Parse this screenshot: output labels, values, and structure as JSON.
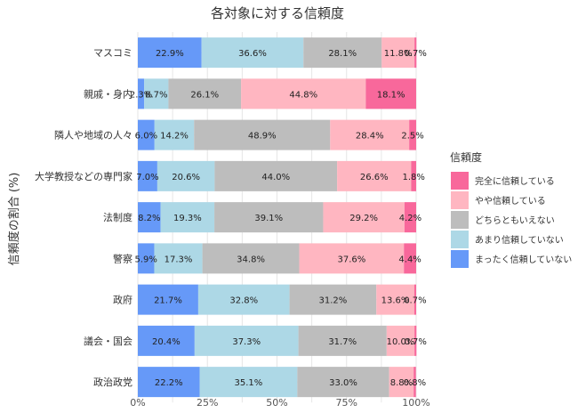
{
  "chart_data": {
    "type": "bar",
    "orientation": "horizontal",
    "stacked": true,
    "title": "各対象に対する信頼度",
    "ylabel": "信頼度の割合 (%)",
    "xlabel": "",
    "xlim": [
      0,
      100
    ],
    "x_ticks": [
      "0%",
      "25%",
      "50%",
      "75%",
      "100%"
    ],
    "grid": true,
    "legend": {
      "title": "信頼度",
      "placement": "right",
      "items": [
        "完全に信頼している",
        "やや信頼している",
        "どちらともいえない",
        "あまり信頼していない",
        "まったく信頼していない"
      ]
    },
    "colors": {
      "完全に信頼している": "#F8689B",
      "やや信頼している": "#FFB6C1",
      "どちらともいえない": "#BDBDBD",
      "あまり信頼していない": "#ADD8E6",
      "まったく信頼していない": "#6699F8"
    },
    "categories": [
      "マスコミ",
      "親戚・身内",
      "隣人や地域の人々",
      "大学教授などの専門家",
      "法制度",
      "警察",
      "政府",
      "議会・国会",
      "政治政党"
    ],
    "series": [
      {
        "name": "まったく信頼していない",
        "values": [
          22.9,
          2.3,
          6.0,
          7.0,
          8.2,
          5.9,
          21.7,
          20.4,
          22.2
        ],
        "labels": [
          "22.9%",
          "2.3%",
          "6.0%",
          "7.0%",
          "8.2%",
          "5.9%",
          "21.7%",
          "20.4%",
          "22.2%"
        ]
      },
      {
        "name": "あまり信頼していない",
        "values": [
          36.6,
          8.7,
          14.2,
          20.6,
          19.3,
          17.3,
          32.8,
          37.3,
          35.1
        ],
        "labels": [
          "36.6%",
          "8.7%",
          "14.2%",
          "20.6%",
          "19.3%",
          "17.3%",
          "32.8%",
          "37.3%",
          "35.1%"
        ]
      },
      {
        "name": "どちらともいえない",
        "values": [
          28.1,
          26.1,
          48.9,
          44.0,
          39.1,
          34.8,
          31.2,
          31.7,
          33.0
        ],
        "labels": [
          "28.1%",
          "26.1%",
          "48.9%",
          "44.0%",
          "39.1%",
          "34.8%",
          "31.2%",
          "31.7%",
          "33.0%"
        ]
      },
      {
        "name": "やや信頼している",
        "values": [
          11.8,
          44.8,
          28.4,
          26.6,
          29.2,
          37.6,
          13.6,
          10.0,
          8.8
        ],
        "labels": [
          "11.8%",
          "44.8%",
          "28.4%",
          "26.6%",
          "29.2%",
          "37.6%",
          "13.6%",
          "10.0%",
          "8.8%"
        ]
      },
      {
        "name": "完全に信頼している",
        "values": [
          0.7,
          18.1,
          2.5,
          1.8,
          4.2,
          4.4,
          0.7,
          0.7,
          0.8
        ],
        "labels": [
          "0.7%",
          "18.1%",
          "2.5%",
          "1.8%",
          "4.2%",
          "4.4%",
          "0.7%",
          "0.7%",
          "0.8%"
        ]
      }
    ]
  }
}
